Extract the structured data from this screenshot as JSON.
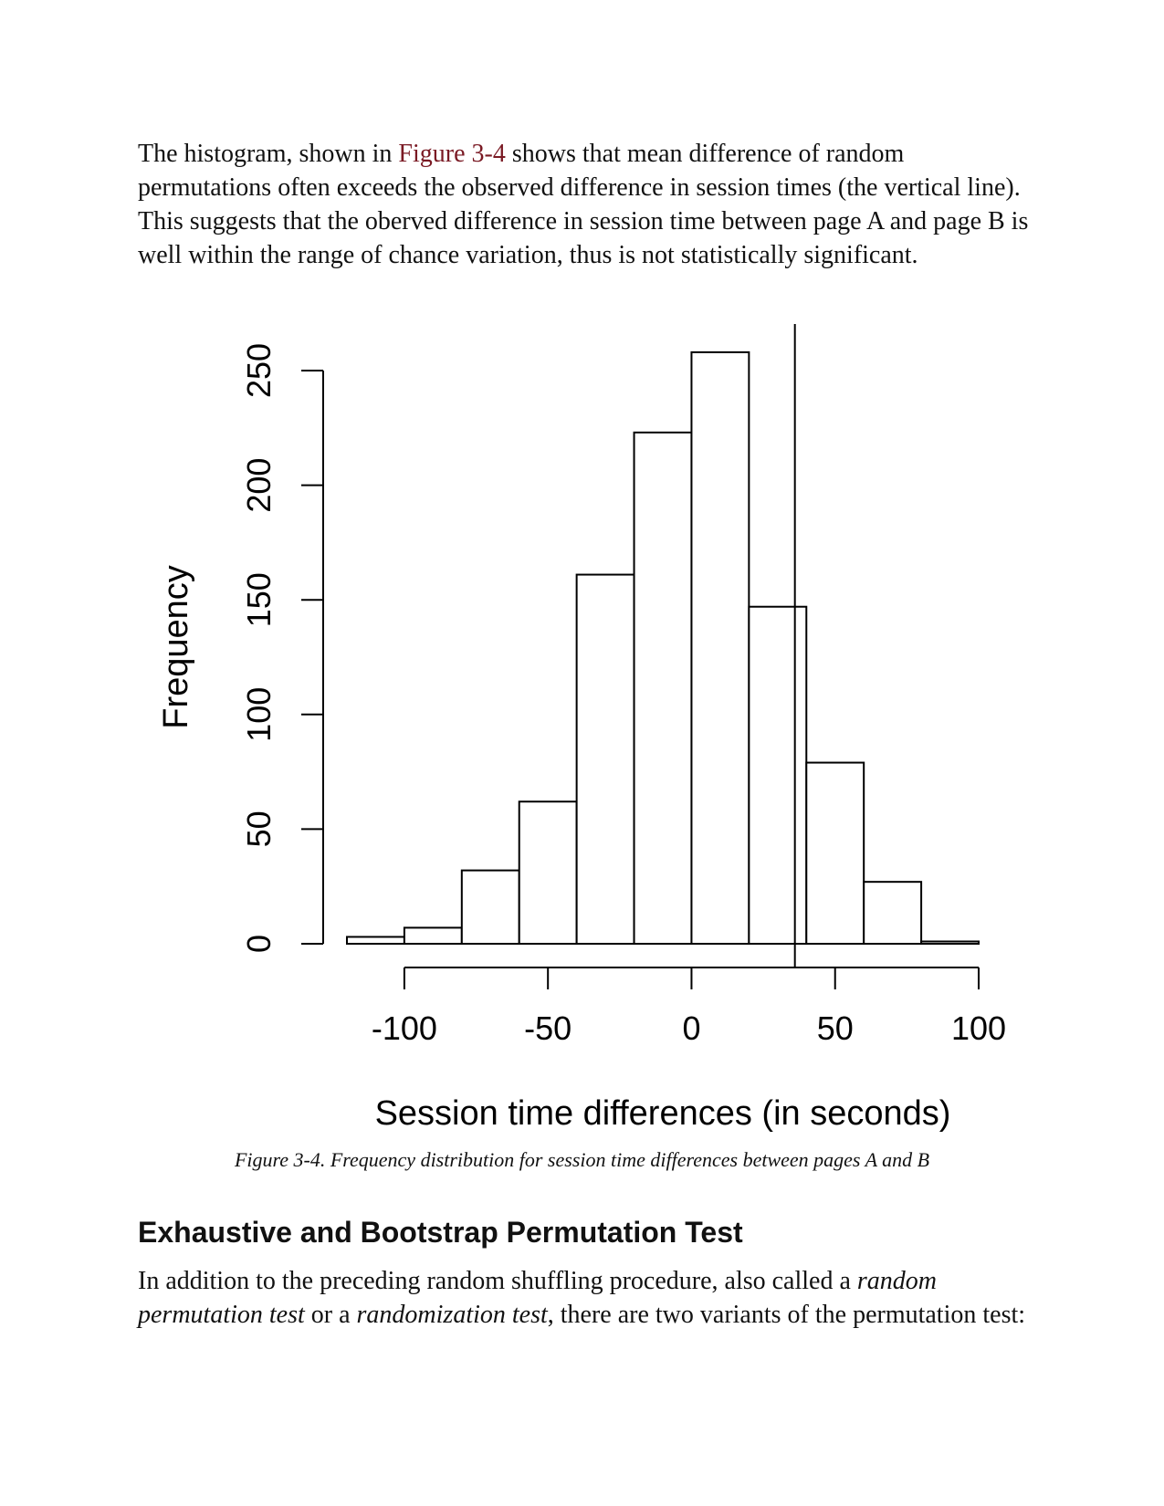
{
  "paragraph1": {
    "prefix": "The histogram, shown in ",
    "link": "Figure 3-4",
    "suffix": " shows that mean difference of random permutations often exceeds the observed difference in session times (the vertical line). This suggests that the oberved difference in session time between page A and page B is well within the range of chance variation, thus is not statistically significant."
  },
  "chart_data": {
    "type": "bar",
    "subtype": "histogram",
    "bin_edges": [
      -120,
      -100,
      -80,
      -60,
      -40,
      -20,
      0,
      20,
      40,
      60,
      80,
      100
    ],
    "values": [
      3,
      7,
      32,
      62,
      161,
      223,
      258,
      147,
      79,
      27,
      1
    ],
    "vline": 36,
    "xlabel": "Session time differences (in seconds)",
    "ylabel": "Frequency",
    "xticks": [
      -100,
      -50,
      0,
      50,
      100
    ],
    "xtick_labels": [
      "-100",
      "-50",
      "0",
      "50",
      "100"
    ],
    "yticks": [
      0,
      50,
      100,
      150,
      200,
      250
    ],
    "ytick_labels": [
      "0",
      "50",
      "100",
      "150",
      "200",
      "250"
    ],
    "xlim": [
      -120,
      100
    ],
    "ylim": [
      0,
      250
    ],
    "grid": false
  },
  "caption": "Figure 3-4. Frequency distribution for session time differences between pages A and B",
  "heading": "Exhaustive and Bootstrap Permutation Test",
  "paragraph2": {
    "t1": "In addition to the preceding random shuffling procedure, also called a ",
    "i1": "random permutation test",
    "t2": " or a ",
    "i2": "randomization test",
    "t3": ", there are two variants of the permutation test:"
  }
}
